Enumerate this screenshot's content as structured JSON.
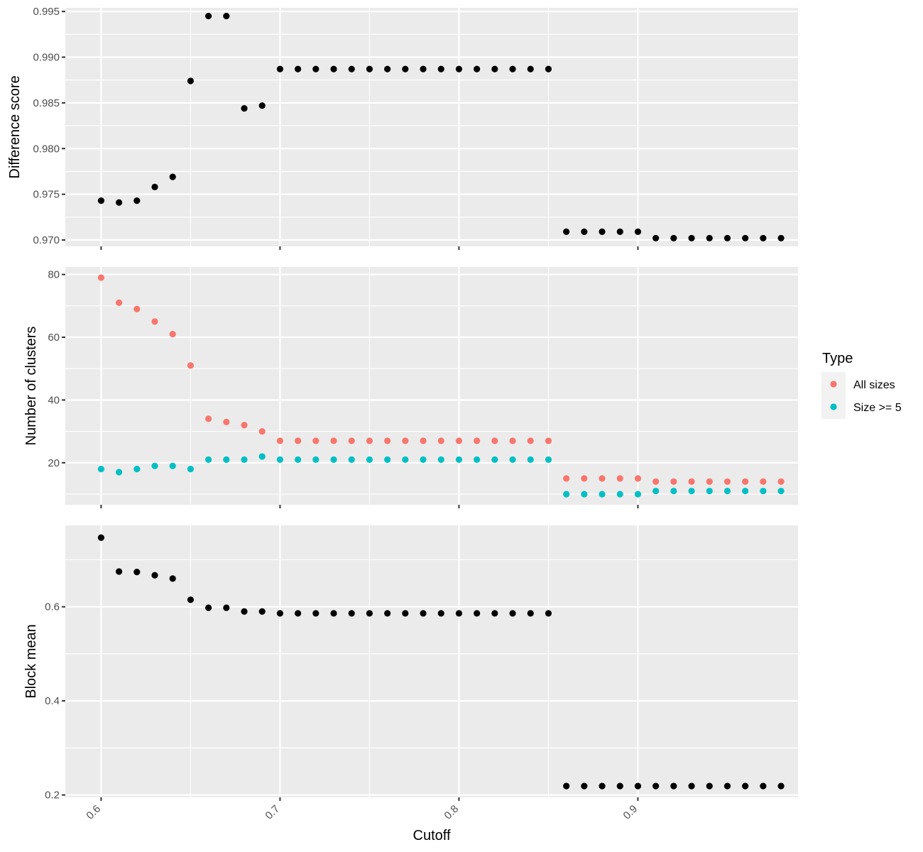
{
  "chart_data": {
    "type": "scatter",
    "xlabel": "Cutoff",
    "xlim": [
      0.58,
      0.9895
    ],
    "xticks": [
      0.6,
      0.7,
      0.8,
      0.9
    ],
    "xtick_labels": [
      "0.6",
      "0.7",
      "0.8",
      "0.9"
    ],
    "x": [
      0.6,
      0.61,
      0.62,
      0.63,
      0.64,
      0.65,
      0.66,
      0.67,
      0.68,
      0.69,
      0.7,
      0.71,
      0.72,
      0.73,
      0.74,
      0.75,
      0.76,
      0.77,
      0.78,
      0.79,
      0.8,
      0.81,
      0.82,
      0.83,
      0.84,
      0.85,
      0.86,
      0.87,
      0.88,
      0.89,
      0.9,
      0.91,
      0.92,
      0.93,
      0.94,
      0.95,
      0.96,
      0.97,
      0.98
    ],
    "grid": true,
    "legend": {
      "title": "Type",
      "position": "right",
      "items": [
        {
          "label": "All sizes",
          "color": "#F8766D"
        },
        {
          "label": "Size >= 5",
          "color": "#00BFC4"
        }
      ]
    },
    "panels": [
      {
        "ylabel": "Difference score",
        "ylim": [
          0.9693,
          0.9954
        ],
        "yticks": [
          0.97,
          0.975,
          0.98,
          0.985,
          0.99,
          0.995
        ],
        "ytick_labels": [
          "0.970",
          "0.975",
          "0.980",
          "0.985",
          "0.990",
          "0.995"
        ],
        "series": [
          {
            "color": "#000000",
            "values": [
              0.9743,
              0.9741,
              0.9743,
              0.9758,
              0.9769,
              0.9874,
              0.9945,
              0.9945,
              0.9844,
              0.9847,
              0.9887,
              0.9887,
              0.9887,
              0.9887,
              0.9887,
              0.9887,
              0.9887,
              0.9887,
              0.9887,
              0.9887,
              0.9887,
              0.9887,
              0.9887,
              0.9887,
              0.9887,
              0.9887,
              0.9709,
              0.9709,
              0.9709,
              0.9709,
              0.9709,
              0.9702,
              0.9702,
              0.9702,
              0.9702,
              0.9702,
              0.9702,
              0.9702,
              0.9702
            ]
          }
        ]
      },
      {
        "ylabel": "Number of clusters",
        "ylim": [
          6.6,
          82.4
        ],
        "yticks": [
          20,
          40,
          60,
          80
        ],
        "ytick_labels": [
          "20",
          "40",
          "60",
          "80"
        ],
        "series": [
          {
            "name": "All sizes",
            "color": "#F8766D",
            "values": [
              79,
              71,
              69,
              65,
              61,
              51,
              34,
              33,
              32,
              30,
              27,
              27,
              27,
              27,
              27,
              27,
              27,
              27,
              27,
              27,
              27,
              27,
              27,
              27,
              27,
              27,
              15,
              15,
              15,
              15,
              15,
              14,
              14,
              14,
              14,
              14,
              14,
              14,
              14
            ]
          },
          {
            "name": "Size >= 5",
            "color": "#00BFC4",
            "values": [
              18,
              17,
              18,
              19,
              19,
              18,
              21,
              21,
              21,
              22,
              21,
              21,
              21,
              21,
              21,
              21,
              21,
              21,
              21,
              21,
              21,
              21,
              21,
              21,
              21,
              21,
              10,
              10,
              10,
              10,
              10,
              11,
              11,
              11,
              11,
              11,
              11,
              11,
              11
            ]
          }
        ]
      },
      {
        "ylabel": "Block mean",
        "ylim": [
          0.195,
          0.773
        ],
        "yticks": [
          0.2,
          0.4,
          0.6
        ],
        "ytick_labels": [
          "0.2",
          "0.4",
          "0.6"
        ],
        "series": [
          {
            "color": "#000000",
            "values": [
              0.747,
              0.675,
              0.674,
              0.667,
              0.66,
              0.615,
              0.598,
              0.598,
              0.59,
              0.59,
              0.586,
              0.586,
              0.586,
              0.586,
              0.586,
              0.586,
              0.586,
              0.586,
              0.586,
              0.586,
              0.586,
              0.586,
              0.586,
              0.586,
              0.586,
              0.586,
              0.219,
              0.219,
              0.219,
              0.219,
              0.219,
              0.219,
              0.219,
              0.219,
              0.219,
              0.219,
              0.219,
              0.219,
              0.219
            ]
          }
        ]
      }
    ]
  }
}
